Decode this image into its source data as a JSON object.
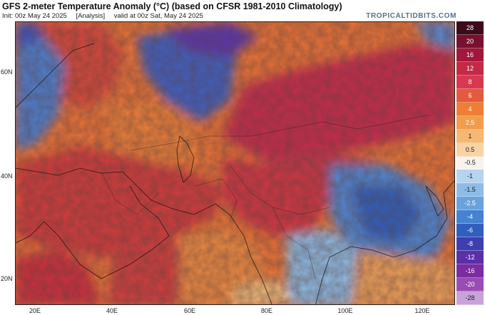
{
  "header": {
    "title": "GFS 2-meter Temperature Anomaly (°C) (based on CFSR 1981-2010 Climatology)",
    "init": "Init: 00z May 24 2025",
    "run_type": "[Analysis]",
    "valid": "valid at 00z Sat, May 24 2025",
    "brand": "TROPICALTIDBITS.COM"
  },
  "map": {
    "lat_labels": [
      "60N",
      "40N",
      "20N"
    ],
    "lon_labels": [
      "20E",
      "40E",
      "60E",
      "80E",
      "100E",
      "120E"
    ]
  },
  "colorbar": {
    "labels": [
      "28",
      "20",
      "16",
      "12",
      "8",
      "6",
      "4",
      "2.5",
      "1",
      "0.5",
      "-0.5",
      "-1",
      "-1.5",
      "-2.5",
      "-4",
      "-6",
      "-8",
      "-12",
      "-16",
      "-20",
      "-28"
    ],
    "colors": [
      "#3d0a1a",
      "#7a1030",
      "#a3173a",
      "#c32a46",
      "#d8394f",
      "#e35b3c",
      "#ee7d35",
      "#f39c4a",
      "#f6b873",
      "#f8d3a6",
      "#f7f3ee",
      "#b6d4ee",
      "#8ebce6",
      "#6ba2dc",
      "#4682cf",
      "#2f5fbf",
      "#3f3eb1",
      "#5c2fa8",
      "#7a2ca0",
      "#9a4cb5",
      "#c8a3d8"
    ]
  }
}
